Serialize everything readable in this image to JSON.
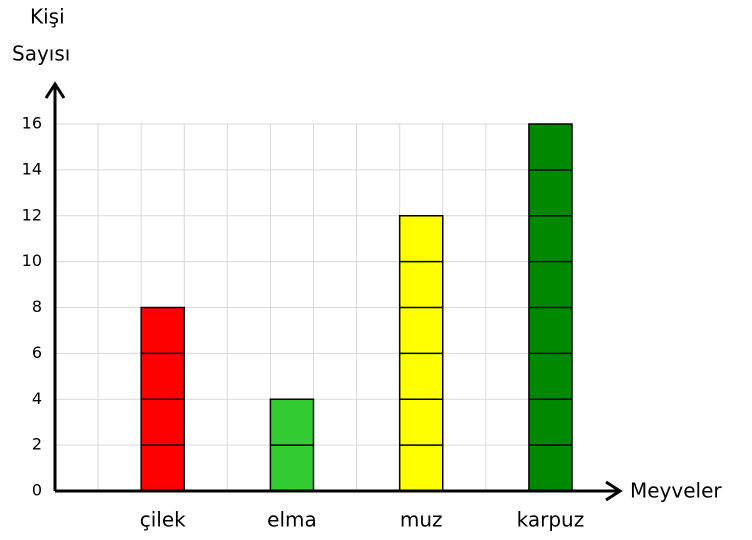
{
  "chart_data": {
    "type": "bar",
    "ylabel": [
      "Kişi",
      "Sayısı"
    ],
    "xlabel": "Meyveler",
    "categories": [
      "çilek",
      "elma",
      "muz",
      "karpuz"
    ],
    "values": [
      8,
      4,
      12,
      16
    ],
    "colors": [
      "#ff0000",
      "#33cc33",
      "#ffff00",
      "#008800"
    ],
    "ylim": [
      0,
      16
    ],
    "yticks": [
      0,
      2,
      4,
      6,
      8,
      10,
      12,
      14,
      16
    ],
    "grid": true
  }
}
